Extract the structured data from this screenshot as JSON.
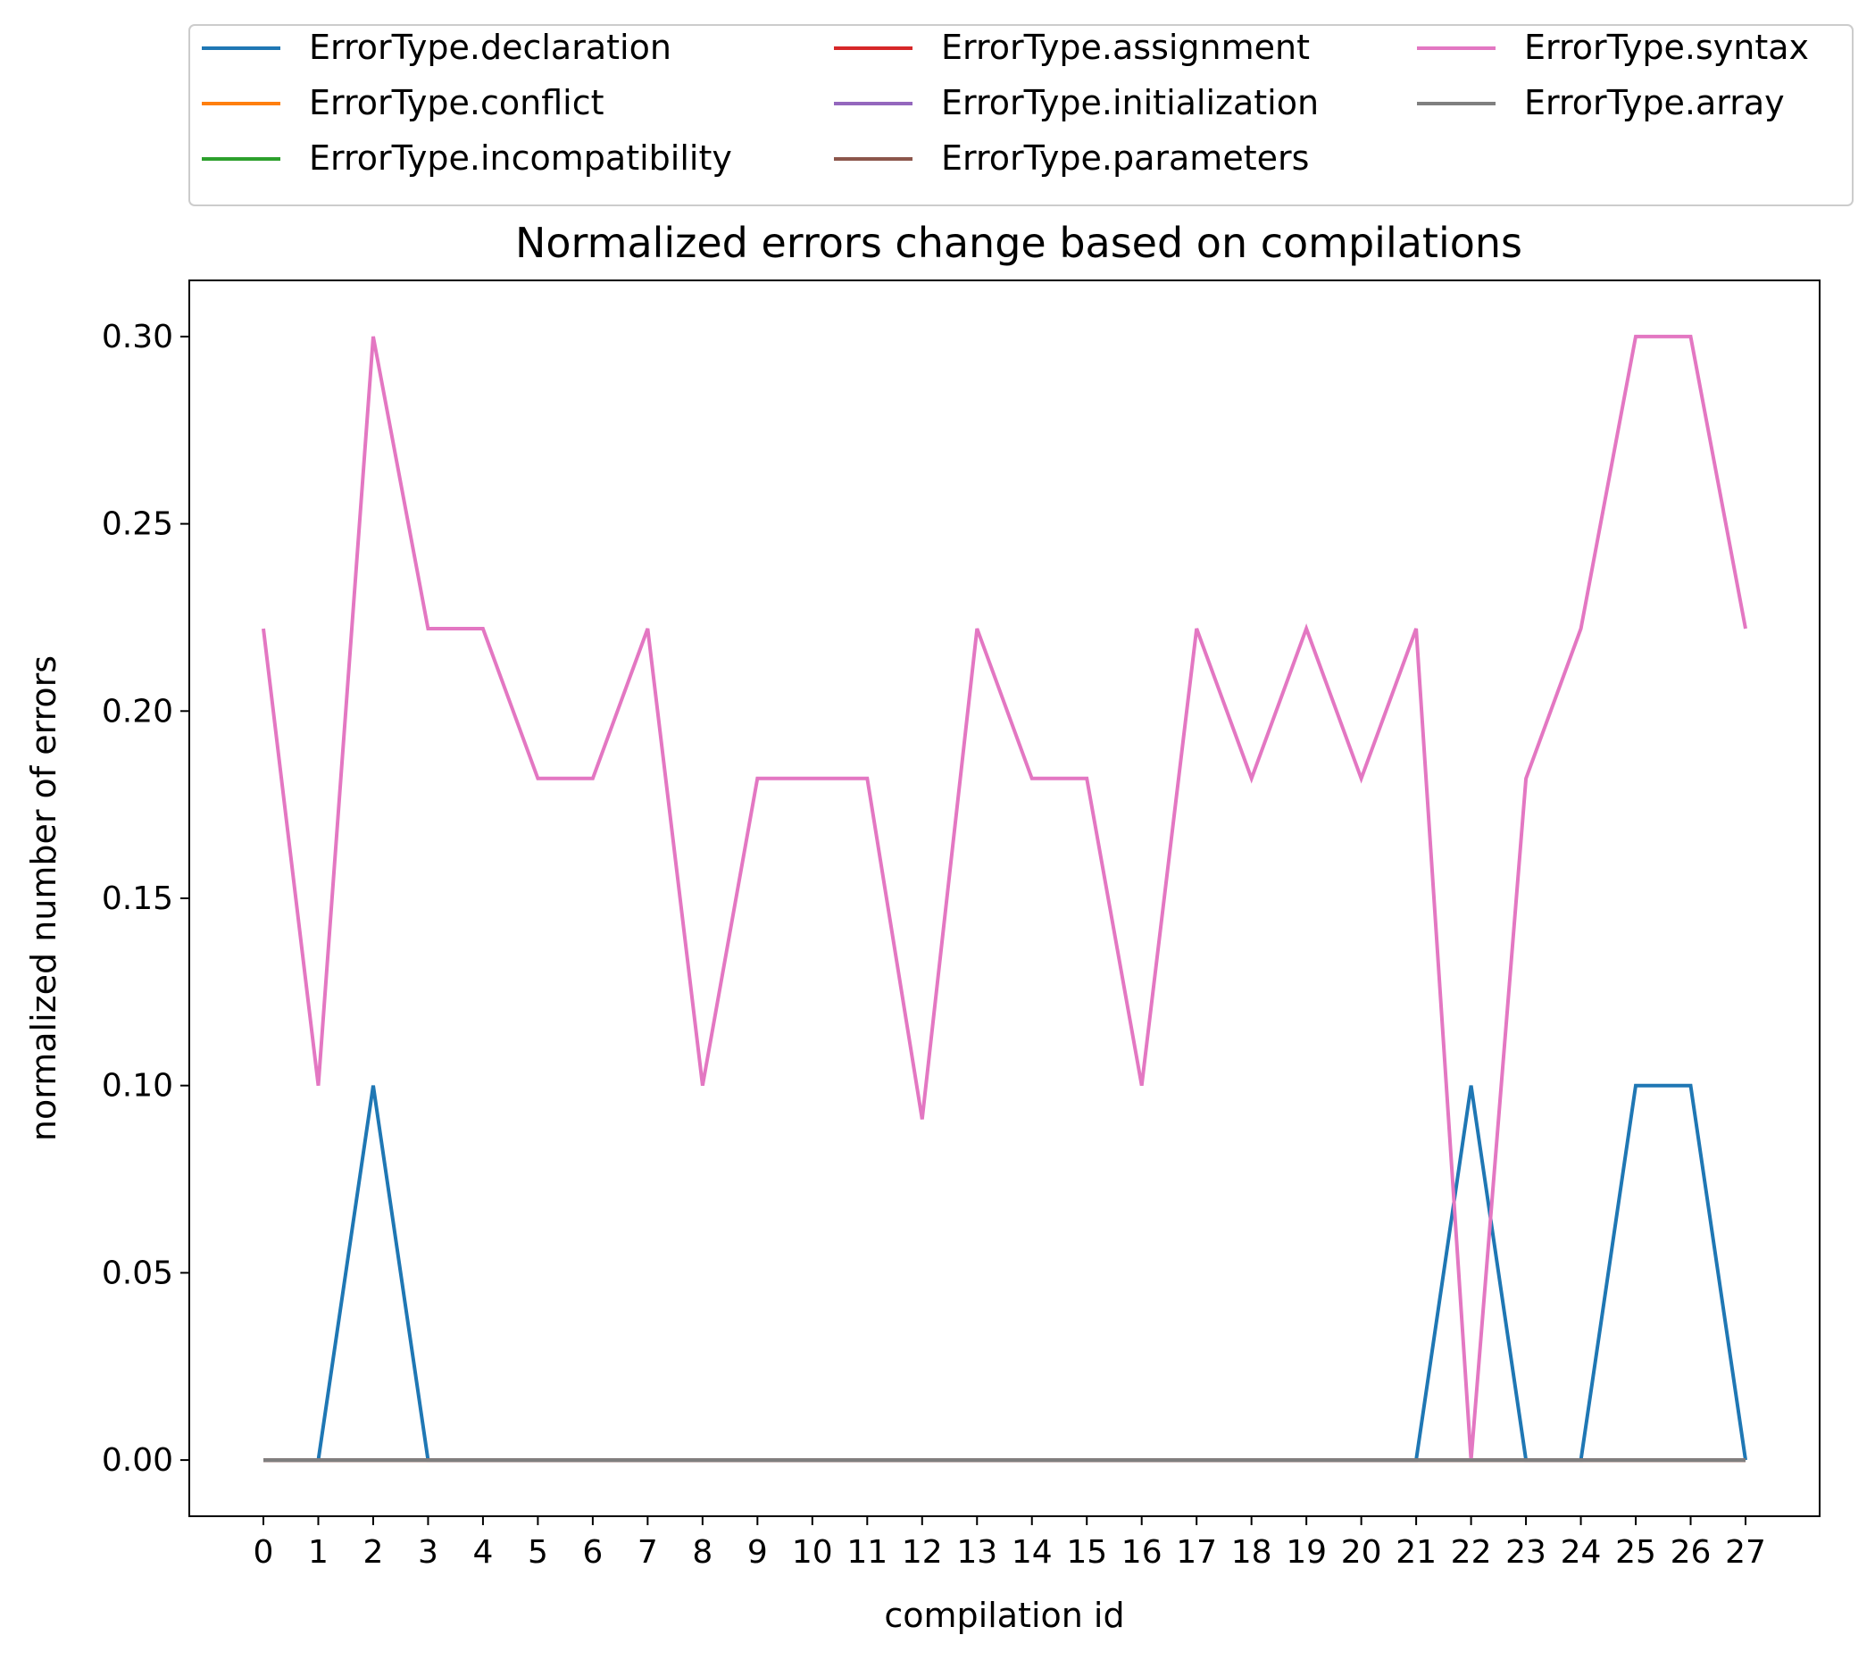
{
  "chart_data": {
    "type": "line",
    "title": "Normalized errors change based on compilations",
    "xlabel": "compilation id",
    "ylabel": "normalized number of errors",
    "x": [
      0,
      1,
      2,
      3,
      4,
      5,
      6,
      7,
      8,
      9,
      10,
      11,
      12,
      13,
      14,
      15,
      16,
      17,
      18,
      19,
      20,
      21,
      22,
      23,
      24,
      25,
      26,
      27
    ],
    "xlim": [
      -1.35,
      28.35
    ],
    "ylim": [
      -0.015,
      0.315
    ],
    "yticks": [
      0.0,
      0.05,
      0.1,
      0.15,
      0.2,
      0.25,
      0.3
    ],
    "ytick_labels": [
      "0.00",
      "0.05",
      "0.10",
      "0.15",
      "0.20",
      "0.25",
      "0.30"
    ],
    "grid": false,
    "legend_position": "top (above plot), 3 columns",
    "legend_columns": 3,
    "series": [
      {
        "name": "ErrorType.declaration",
        "color": "#1f77b4",
        "values": [
          0,
          0,
          0.1,
          0,
          0,
          0,
          0,
          0,
          0,
          0,
          0,
          0,
          0,
          0,
          0,
          0,
          0,
          0,
          0,
          0,
          0,
          0,
          0.1,
          0,
          0,
          0.1,
          0.1,
          0
        ]
      },
      {
        "name": "ErrorType.conflict",
        "color": "#ff7f0e",
        "values": [
          0,
          0,
          0,
          0,
          0,
          0,
          0,
          0,
          0,
          0,
          0,
          0,
          0,
          0,
          0,
          0,
          0,
          0,
          0,
          0,
          0,
          0,
          0,
          0,
          0,
          0,
          0,
          0
        ]
      },
      {
        "name": "ErrorType.incompatibility",
        "color": "#2ca02c",
        "values": [
          0,
          0,
          0,
          0,
          0,
          0,
          0,
          0,
          0,
          0,
          0,
          0,
          0,
          0,
          0,
          0,
          0,
          0,
          0,
          0,
          0,
          0,
          0,
          0,
          0,
          0,
          0,
          0
        ]
      },
      {
        "name": "ErrorType.assignment",
        "color": "#d62728",
        "values": [
          0,
          0,
          0,
          0,
          0,
          0,
          0,
          0,
          0,
          0,
          0,
          0,
          0,
          0,
          0,
          0,
          0,
          0,
          0,
          0,
          0,
          0,
          0,
          0,
          0,
          0,
          0,
          0
        ]
      },
      {
        "name": "ErrorType.initialization",
        "color": "#9467bd",
        "values": [
          0,
          0,
          0,
          0,
          0,
          0,
          0,
          0,
          0,
          0,
          0,
          0,
          0,
          0,
          0,
          0,
          0,
          0,
          0,
          0,
          0,
          0,
          0,
          0,
          0,
          0,
          0,
          0
        ]
      },
      {
        "name": "ErrorType.parameters",
        "color": "#8c564b",
        "values": [
          0,
          0,
          0,
          0,
          0,
          0,
          0,
          0,
          0,
          0,
          0,
          0,
          0,
          0,
          0,
          0,
          0,
          0,
          0,
          0,
          0,
          0,
          0,
          0,
          0,
          0,
          0,
          0
        ]
      },
      {
        "name": "ErrorType.syntax",
        "color": "#e377c2",
        "values": [
          0.222,
          0.1,
          0.3,
          0.222,
          0.222,
          0.182,
          0.182,
          0.222,
          0.1,
          0.182,
          0.182,
          0.182,
          0.091,
          0.222,
          0.182,
          0.182,
          0.1,
          0.222,
          0.182,
          0.222,
          0.182,
          0.222,
          0,
          0.182,
          0.222,
          0.3,
          0.3,
          0.222
        ]
      },
      {
        "name": "ErrorType.array",
        "color": "#7f7f7f",
        "values": [
          0,
          0,
          0,
          0,
          0,
          0,
          0,
          0,
          0,
          0,
          0,
          0,
          0,
          0,
          0,
          0,
          0,
          0,
          0,
          0,
          0,
          0,
          0,
          0,
          0,
          0,
          0,
          0
        ]
      }
    ]
  }
}
